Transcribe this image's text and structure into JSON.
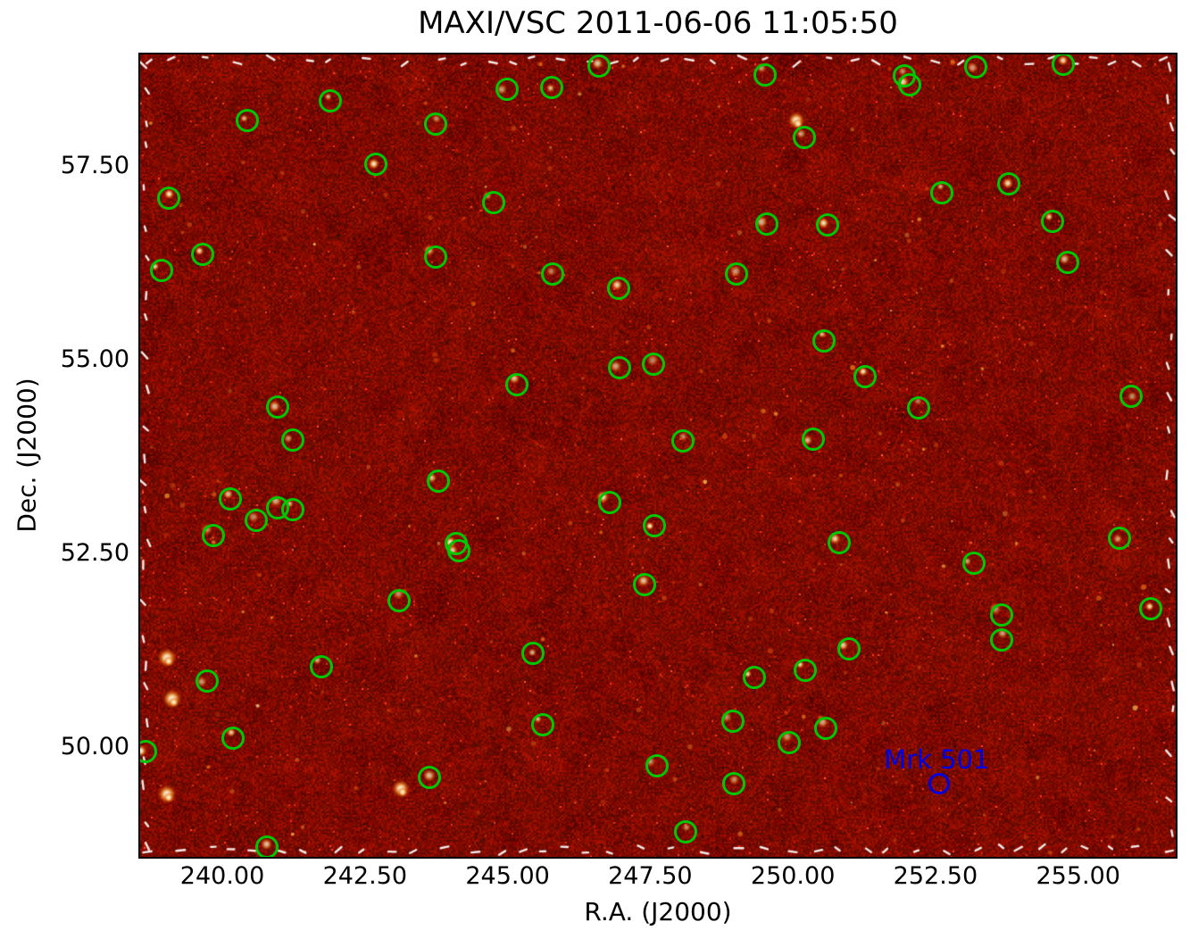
{
  "title": "MAXI/VSC 2011-06-06 11:05:50",
  "axes": {
    "xlabel": "R.A. (J2000)",
    "ylabel": "Dec. (J2000)",
    "x_tick_labels": [
      "240.00",
      "242.50",
      "245.00",
      "247.50",
      "250.00",
      "252.50",
      "255.00"
    ],
    "y_tick_labels": [
      "57.50",
      "55.00",
      "52.50",
      "50.00"
    ]
  },
  "colors": {
    "source_circle": "#00c800",
    "annotation": "#0000e0",
    "sky_base": "#7e0a00",
    "sky_bright": "#ffffff",
    "axis_text": "#000000"
  },
  "chart_data": {
    "type": "scatter",
    "title": "MAXI/VSC 2011-06-06 11:05:50",
    "xlabel": "R.A. (J2000)",
    "ylabel": "Dec. (J2000)",
    "xlim": [
      238.56,
      256.71
    ],
    "ylim": [
      48.58,
      58.94
    ],
    "x_ticks": [
      240.0,
      242.5,
      245.0,
      247.5,
      250.0,
      252.5,
      255.0
    ],
    "y_ticks": [
      57.5,
      55.0,
      52.5,
      50.0
    ],
    "grid": false,
    "legend": "none",
    "description": "X-ray sky image (dark-red hot colormap with noise speckle); green circles mark detected X-ray sources; blue circle marks Mrk 501",
    "sources_ra_dec": [
      [
        246.6,
        58.79
      ],
      [
        244.99,
        58.49
      ],
      [
        245.77,
        58.51
      ],
      [
        241.89,
        58.34
      ],
      [
        240.44,
        58.09
      ],
      [
        243.74,
        58.04
      ],
      [
        242.69,
        57.52
      ],
      [
        239.06,
        57.09
      ],
      [
        244.76,
        57.03
      ],
      [
        239.66,
        56.36
      ],
      [
        238.94,
        56.15
      ],
      [
        243.74,
        56.32
      ],
      [
        245.79,
        56.11
      ],
      [
        246.95,
        55.92
      ],
      [
        245.16,
        54.68
      ],
      [
        246.96,
        54.89
      ],
      [
        247.56,
        54.94
      ],
      [
        240.97,
        54.39
      ],
      [
        241.24,
        53.96
      ],
      [
        249.51,
        58.68
      ],
      [
        251.95,
        58.66
      ],
      [
        252.05,
        58.55
      ],
      [
        253.21,
        58.78
      ],
      [
        254.74,
        58.81
      ],
      [
        250.2,
        57.87
      ],
      [
        252.61,
        57.15
      ],
      [
        253.79,
        57.27
      ],
      [
        249.54,
        56.75
      ],
      [
        250.61,
        56.74
      ],
      [
        254.55,
        56.79
      ],
      [
        249.01,
        56.11
      ],
      [
        254.82,
        56.26
      ],
      [
        250.55,
        55.24
      ],
      [
        251.27,
        54.78
      ],
      [
        252.2,
        54.38
      ],
      [
        255.93,
        54.53
      ],
      [
        248.07,
        53.95
      ],
      [
        250.36,
        53.97
      ],
      [
        240.14,
        53.2
      ],
      [
        240.59,
        52.92
      ],
      [
        240.97,
        53.09
      ],
      [
        241.24,
        53.06
      ],
      [
        239.84,
        52.73
      ],
      [
        243.79,
        53.43
      ],
      [
        244.1,
        52.62
      ],
      [
        244.15,
        52.53
      ],
      [
        246.79,
        53.16
      ],
      [
        247.57,
        52.85
      ],
      [
        247.4,
        52.09
      ],
      [
        243.1,
        51.89
      ],
      [
        245.44,
        51.21
      ],
      [
        241.74,
        51.04
      ],
      [
        239.73,
        50.85
      ],
      [
        245.62,
        50.28
      ],
      [
        240.19,
        50.11
      ],
      [
        238.65,
        49.94
      ],
      [
        243.63,
        49.61
      ],
      [
        247.62,
        49.76
      ],
      [
        240.78,
        48.71
      ],
      [
        250.81,
        52.64
      ],
      [
        253.17,
        52.37
      ],
      [
        255.72,
        52.69
      ],
      [
        256.27,
        51.78
      ],
      [
        253.66,
        51.7
      ],
      [
        253.66,
        51.38
      ],
      [
        250.98,
        51.27
      ],
      [
        250.22,
        50.99
      ],
      [
        249.32,
        50.9
      ],
      [
        248.95,
        50.33
      ],
      [
        250.58,
        50.24
      ],
      [
        249.93,
        50.06
      ],
      [
        248.12,
        48.9
      ],
      [
        248.96,
        49.52
      ]
    ],
    "labeled_source": {
      "name": "Mrk 501",
      "circle_ra": 252.56,
      "circle_dec": 49.53,
      "label_ra": 252.52,
      "label_dec": 49.84
    },
    "uncircled_bright_blobs_ra_dec": [
      [
        239.03,
        51.15
      ],
      [
        239.12,
        50.62
      ],
      [
        239.03,
        49.39
      ],
      [
        243.13,
        49.46
      ],
      [
        250.06,
        58.09
      ]
    ]
  }
}
